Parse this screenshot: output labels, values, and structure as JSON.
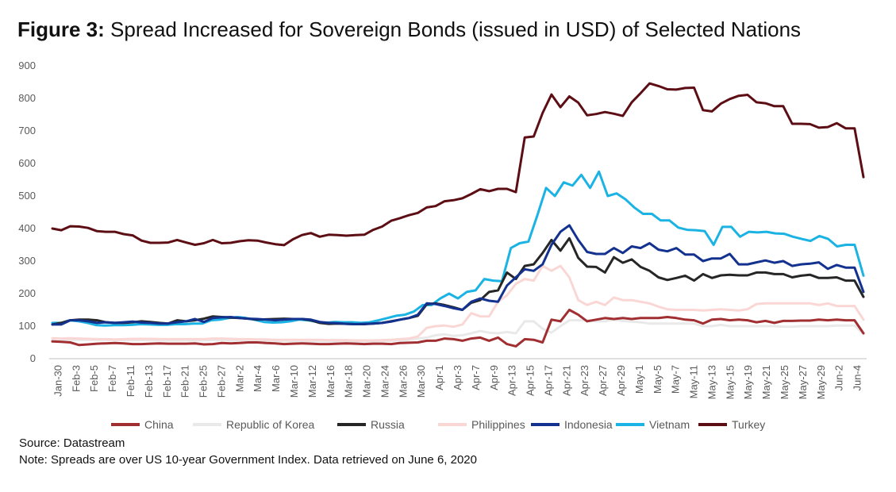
{
  "title": {
    "figure_label": "Figure 3:",
    "text": "Spread Increased for Sovereign Bonds (issued in USD) of Selected Nations"
  },
  "source": "Source: Datastream",
  "note": "Note: Spreads are over US 10-year Government Index. Data retrieved on June 6, 2020",
  "chart_data": {
    "type": "line",
    "title": "Spread Increased for Sovereign Bonds (issued in USD) of Selected Nations",
    "xlabel": "",
    "ylabel": "",
    "ylim": [
      0,
      900
    ],
    "yticks": [
      0,
      100,
      200,
      300,
      400,
      500,
      600,
      700,
      800,
      900
    ],
    "grid": false,
    "legend": "bottom",
    "x_tick_labels": [
      "Jan-30",
      "Feb-3",
      "Feb-5",
      "Feb-7",
      "Feb-11",
      "Feb-13",
      "Feb-17",
      "Feb-21",
      "Feb-25",
      "Feb-27",
      "Mar-2",
      "Mar-4",
      "Mar-6",
      "Mar-10",
      "Mar-12",
      "Mar-16",
      "Mar-18",
      "Mar-20",
      "Mar-24",
      "Mar-26",
      "Mar-30",
      "Apr-1",
      "Apr-3",
      "Apr-7",
      "Apr-9",
      "Apr-13",
      "Apr-15",
      "Apr-17",
      "Apr-21",
      "Apr-23",
      "Apr-27",
      "Apr-29",
      "May-1",
      "May-5",
      "May-7",
      "May-11",
      "May-13",
      "May-15",
      "May-19",
      "May-21",
      "May-25",
      "May-27",
      "May-29",
      "Jun-2",
      "Jun-4"
    ],
    "series": [
      {
        "name": "Turkey",
        "color": "#5c0e14",
        "width": 3,
        "values": [
          400,
          395,
          407,
          406,
          402,
          392,
          390,
          390,
          383,
          379,
          363,
          356,
          356,
          357,
          365,
          357,
          350,
          355,
          365,
          355,
          356,
          361,
          364,
          363,
          357,
          352,
          349,
          367,
          380,
          386,
          375,
          381,
          380,
          378,
          380,
          381,
          396,
          406,
          424,
          432,
          441,
          448,
          465,
          469,
          484,
          487,
          493,
          506,
          521,
          515,
          522,
          522,
          512,
          680,
          683,
          755,
          812,
          773,
          806,
          787,
          748,
          752,
          758,
          753,
          746,
          788,
          816,
          846,
          838,
          828,
          827,
          832,
          833,
          764,
          760,
          784,
          798,
          808,
          811,
          788,
          785,
          776,
          776,
          722,
          722,
          721,
          710,
          712,
          724,
          708,
          708,
          558
        ]
      },
      {
        "name": "Vietnam",
        "color": "#1bb3e3",
        "width": 3,
        "values": [
          110,
          110,
          118,
          115,
          110,
          103,
          102,
          103,
          103,
          104,
          106,
          105,
          104,
          104,
          106,
          106,
          108,
          108,
          118,
          120,
          125,
          128,
          125,
          119,
          113,
          111,
          112,
          115,
          120,
          118,
          113,
          110,
          113,
          112,
          112,
          110,
          112,
          118,
          125,
          132,
          135,
          145,
          165,
          165,
          185,
          200,
          185,
          205,
          210,
          245,
          240,
          238,
          340,
          355,
          360,
          440,
          525,
          500,
          542,
          532,
          565,
          525,
          575,
          500,
          508,
          490,
          465,
          445,
          445,
          425,
          425,
          403,
          396,
          395,
          392,
          350,
          405,
          405,
          375,
          390,
          388,
          390,
          385,
          384,
          375,
          368,
          362,
          377,
          368,
          345,
          350,
          350,
          255
        ]
      },
      {
        "name": "Indonesia",
        "color": "#13318f",
        "width": 3,
        "values": [
          105,
          105,
          118,
          118,
          115,
          110,
          112,
          110,
          112,
          114,
          111,
          110,
          108,
          108,
          112,
          115,
          122,
          113,
          125,
          127,
          128,
          125,
          123,
          122,
          120,
          118,
          120,
          122,
          122,
          120,
          113,
          110,
          109,
          107,
          106,
          107,
          108,
          110,
          114,
          120,
          125,
          135,
          170,
          168,
          162,
          155,
          150,
          175,
          185,
          178,
          175,
          225,
          250,
          275,
          270,
          290,
          350,
          390,
          410,
          365,
          328,
          322,
          322,
          340,
          325,
          345,
          340,
          355,
          335,
          330,
          340,
          320,
          320,
          300,
          308,
          308,
          322,
          290,
          290,
          296,
          302,
          295,
          300,
          285,
          290,
          292,
          296,
          276,
          288,
          280,
          280,
          205
        ]
      },
      {
        "name": "Russia",
        "color": "#262626",
        "width": 3,
        "values": [
          105,
          110,
          118,
          120,
          120,
          118,
          112,
          110,
          110,
          112,
          115,
          113,
          110,
          108,
          118,
          115,
          118,
          123,
          130,
          128,
          126,
          125,
          123,
          120,
          121,
          122,
          123,
          122,
          122,
          118,
          110,
          107,
          108,
          107,
          106,
          106,
          108,
          110,
          115,
          120,
          125,
          132,
          167,
          170,
          165,
          158,
          150,
          172,
          180,
          205,
          210,
          265,
          245,
          285,
          290,
          325,
          365,
          332,
          370,
          310,
          283,
          282,
          265,
          312,
          295,
          305,
          282,
          270,
          250,
          242,
          248,
          255,
          240,
          260,
          248,
          256,
          258,
          256,
          256,
          265,
          265,
          260,
          260,
          250,
          255,
          258,
          248,
          248,
          250,
          240,
          240,
          190
        ]
      },
      {
        "name": "Philippines",
        "color": "#fad7d5",
        "width": 3,
        "values": [
          63,
          62,
          63,
          62,
          61,
          60,
          60,
          59,
          60,
          61,
          61,
          61,
          60,
          60,
          60,
          60,
          60,
          60,
          62,
          62,
          61,
          60,
          60,
          59,
          59,
          58,
          58,
          58,
          58,
          58,
          58,
          57,
          57,
          57,
          56,
          56,
          56,
          57,
          58,
          60,
          62,
          68,
          95,
          100,
          102,
          98,
          105,
          140,
          130,
          130,
          175,
          195,
          230,
          245,
          240,
          285,
          270,
          285,
          250,
          180,
          165,
          175,
          165,
          188,
          180,
          180,
          175,
          170,
          160,
          152,
          150,
          150,
          150,
          148,
          150,
          152,
          150,
          148,
          152,
          168,
          170,
          170,
          170,
          170,
          170,
          170,
          165,
          170,
          162,
          162,
          162,
          120
        ]
      },
      {
        "name": "Republic of Korea",
        "color": "#e9e9e9",
        "width": 3,
        "values": [
          56,
          57,
          58,
          58,
          58,
          58,
          58,
          57,
          57,
          57,
          57,
          57,
          56,
          56,
          56,
          56,
          56,
          56,
          57,
          57,
          56,
          56,
          56,
          55,
          55,
          55,
          54,
          54,
          54,
          54,
          54,
          53,
          53,
          53,
          53,
          53,
          53,
          54,
          55,
          56,
          58,
          62,
          65,
          72,
          75,
          70,
          72,
          78,
          85,
          80,
          78,
          82,
          78,
          115,
          115,
          92,
          80,
          100,
          118,
          118,
          118,
          115,
          115,
          120,
          116,
          114,
          112,
          108,
          108,
          108,
          108,
          108,
          108,
          100,
          100,
          104,
          100,
          100,
          100,
          100,
          100,
          100,
          98,
          98,
          100,
          100,
          100,
          100,
          102,
          102,
          102,
          76
        ]
      },
      {
        "name": "China",
        "color": "#a12f32",
        "width": 3,
        "values": [
          53,
          52,
          50,
          42,
          44,
          46,
          47,
          48,
          47,
          45,
          45,
          46,
          47,
          46,
          46,
          46,
          47,
          44,
          45,
          48,
          47,
          48,
          50,
          50,
          48,
          47,
          45,
          46,
          47,
          46,
          45,
          45,
          46,
          47,
          46,
          45,
          46,
          46,
          45,
          48,
          49,
          50,
          55,
          55,
          62,
          60,
          55,
          62,
          65,
          55,
          65,
          45,
          38,
          60,
          58,
          50,
          120,
          115,
          150,
          135,
          115,
          120,
          125,
          122,
          125,
          122,
          125,
          125,
          125,
          128,
          125,
          120,
          118,
          108,
          120,
          122,
          118,
          120,
          118,
          112,
          116,
          110,
          116,
          116,
          117,
          117,
          120,
          118,
          120,
          118,
          118,
          78
        ]
      }
    ],
    "legend_order": [
      "China",
      "Republic of Korea",
      "Russia",
      "Philippines",
      "Indonesia",
      "Vietnam",
      "Turkey"
    ]
  }
}
